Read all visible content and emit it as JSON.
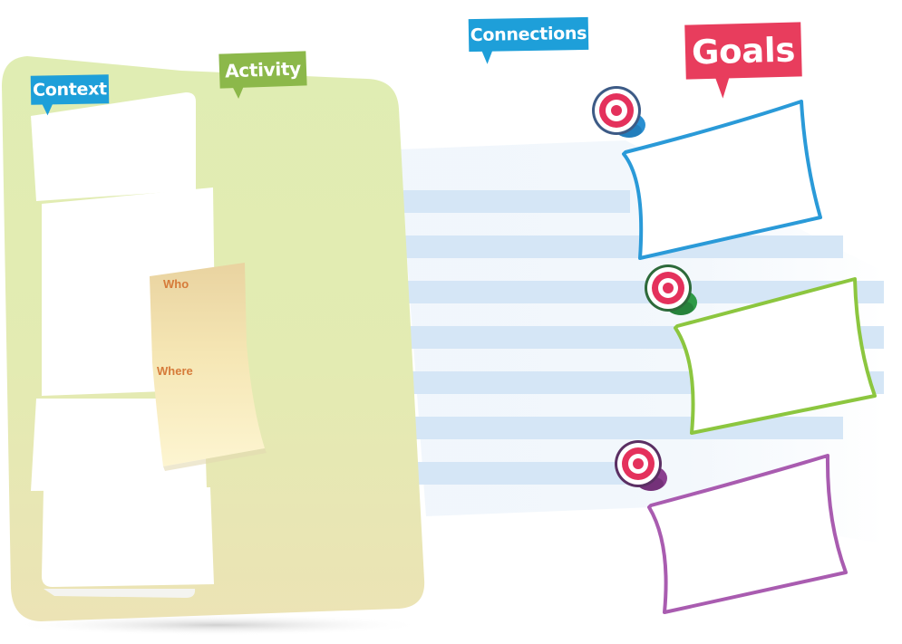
{
  "labels": {
    "context": "Context",
    "activity": "Activity",
    "connections": "Connections",
    "goals": "Goals"
  },
  "sticky": {
    "who": "Who",
    "where": "Where"
  },
  "colors": {
    "context_tag": "#1e9fd9",
    "activity_tag": "#8cb84a",
    "connections_tag": "#1e9fd9",
    "goals_tag": "#e83d5d",
    "board_top": "#e2ecb4",
    "board_bottom": "#ebe4b4",
    "stripe": "#d6e7f6",
    "sticky_text": "#d67b3a",
    "goal_frame_1": "#2a9ad8",
    "goal_frame_2": "#8cc63f",
    "goal_frame_3": "#a95cb0",
    "pin_red": "#e4315c",
    "pin_base_1": "#2a8fd1",
    "pin_base_2": "#2e9a47",
    "pin_base_3": "#8a3f8f"
  },
  "icons": [
    "target-pin-icon",
    "target-pin-icon",
    "target-pin-icon"
  ]
}
